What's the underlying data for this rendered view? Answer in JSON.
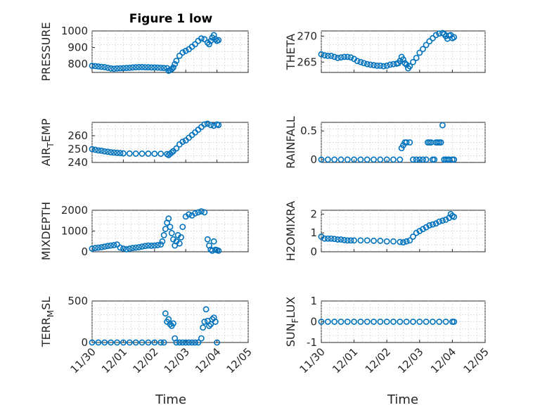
{
  "figure": {
    "title": "Figure 1 low"
  },
  "chart_data": [
    {
      "type": "scatter",
      "ylabel": "PRESSURE",
      "ylabel_main": "PRESSURE",
      "ylim": [
        750,
        1000
      ],
      "yticks": [
        800,
        900,
        1000
      ],
      "xlim": [
        0,
        5
      ],
      "xticks": [
        "11/30",
        "12/01",
        "12/02",
        "12/03",
        "12/04",
        "12/05"
      ],
      "x": [
        0.0,
        0.1,
        0.2,
        0.3,
        0.4,
        0.5,
        0.6,
        0.7,
        0.8,
        0.9,
        1.0,
        1.1,
        1.2,
        1.3,
        1.4,
        1.5,
        1.6,
        1.7,
        1.8,
        1.9,
        2.0,
        2.1,
        2.2,
        2.3,
        2.4,
        2.45,
        2.5,
        2.55,
        2.6,
        2.65,
        2.7,
        2.8,
        2.9,
        3.0,
        3.1,
        3.2,
        3.3,
        3.4,
        3.5,
        3.6,
        3.7,
        3.75,
        3.8,
        3.85,
        3.9,
        3.95,
        4.0,
        4.05
      ],
      "y": [
        790,
        788,
        786,
        784,
        782,
        778,
        774,
        772,
        774,
        775,
        776,
        777,
        778,
        780,
        781,
        782,
        782,
        781,
        781,
        780,
        780,
        779,
        778,
        777,
        776,
        760,
        765,
        770,
        780,
        800,
        820,
        850,
        870,
        880,
        890,
        905,
        920,
        940,
        955,
        950,
        930,
        920,
        940,
        960,
        975,
        950,
        940,
        945
      ]
    },
    {
      "type": "scatter",
      "ylabel": "THETA",
      "ylabel_main": "THETA",
      "ylim": [
        263,
        271
      ],
      "yticks": [
        265,
        270
      ],
      "xlim": [
        0,
        5
      ],
      "xticks": [
        "11/30",
        "12/01",
        "12/02",
        "12/03",
        "12/04",
        "12/05"
      ],
      "x": [
        0.0,
        0.1,
        0.2,
        0.3,
        0.4,
        0.5,
        0.6,
        0.7,
        0.8,
        0.9,
        1.0,
        1.1,
        1.2,
        1.3,
        1.4,
        1.5,
        1.6,
        1.7,
        1.8,
        1.9,
        2.0,
        2.1,
        2.2,
        2.3,
        2.35,
        2.4,
        2.45,
        2.5,
        2.55,
        2.6,
        2.65,
        2.7,
        2.8,
        2.9,
        3.0,
        3.1,
        3.2,
        3.3,
        3.4,
        3.5,
        3.6,
        3.7,
        3.75,
        3.8,
        3.85,
        3.9,
        3.95,
        4.0,
        4.05
      ],
      "y": [
        266.5,
        266.3,
        266.2,
        266.2,
        266.0,
        265.8,
        265.9,
        266.0,
        266.0,
        265.9,
        265.6,
        265.2,
        265.0,
        264.8,
        264.6,
        264.5,
        264.4,
        264.3,
        264.3,
        264.2,
        264.3,
        264.5,
        264.6,
        264.7,
        264.8,
        265.2,
        266.0,
        265.5,
        264.8,
        264.5,
        263.8,
        264.2,
        265.0,
        265.8,
        266.8,
        267.5,
        268.3,
        269.0,
        269.6,
        270.2,
        270.5,
        270.6,
        270.4,
        270.0,
        269.5,
        270.1,
        270.2,
        269.6,
        269.8
      ]
    },
    {
      "type": "scatter",
      "ylabel": "AIR_TEMP",
      "ylabel_main": "AIR",
      "ylabel_sub": "T",
      "ylabel_rest": "EMP",
      "ylim": [
        240,
        270
      ],
      "yticks": [
        240,
        250,
        260
      ],
      "xlim": [
        0,
        5
      ],
      "xticks": [
        "11/30",
        "12/01",
        "12/02",
        "12/03",
        "12/04",
        "12/05"
      ],
      "x": [
        0.0,
        0.1,
        0.2,
        0.3,
        0.4,
        0.5,
        0.6,
        0.7,
        0.8,
        0.9,
        1.0,
        1.2,
        1.4,
        1.6,
        1.8,
        2.0,
        2.2,
        2.4,
        2.45,
        2.5,
        2.55,
        2.6,
        2.7,
        2.8,
        2.9,
        3.0,
        3.1,
        3.2,
        3.3,
        3.4,
        3.5,
        3.6,
        3.7,
        3.8,
        3.9,
        4.0,
        4.05
      ],
      "y": [
        250,
        249.5,
        249,
        248.8,
        248.3,
        248,
        247.6,
        247.4,
        247.2,
        247,
        246.8,
        246.7,
        246.6,
        246.6,
        246.6,
        246.5,
        246.5,
        246.3,
        245.5,
        246.5,
        247.5,
        248.5,
        250.5,
        253.5,
        255.5,
        256.5,
        258.5,
        260.5,
        262.5,
        264.5,
        266.5,
        268.5,
        269,
        268,
        267.5,
        268.5,
        268
      ]
    },
    {
      "type": "scatter",
      "ylabel": "RAINFALL",
      "ylabel_main": "RAINFALL",
      "ylim": [
        -0.05,
        0.65
      ],
      "yticks": [
        0,
        0.5
      ],
      "xlim": [
        0,
        5
      ],
      "xticks": [
        "11/30",
        "12/01",
        "12/02",
        "12/03",
        "12/04",
        "12/05"
      ],
      "x": [
        0.0,
        0.2,
        0.4,
        0.6,
        0.8,
        1.0,
        1.2,
        1.4,
        1.6,
        1.8,
        2.0,
        2.2,
        2.4,
        2.45,
        2.5,
        2.55,
        2.6,
        2.7,
        2.8,
        2.9,
        3.0,
        3.1,
        3.2,
        3.25,
        3.3,
        3.35,
        3.4,
        3.45,
        3.5,
        3.55,
        3.6,
        3.65,
        3.7,
        3.75,
        3.8,
        3.85,
        3.9,
        4.0,
        4.05
      ],
      "y": [
        0,
        0,
        0,
        0,
        0,
        0,
        0,
        0,
        0,
        0,
        0,
        0,
        0,
        0.2,
        0.25,
        0.3,
        0.3,
        0.3,
        0,
        0,
        0,
        0,
        0,
        0.3,
        0.3,
        0.3,
        0,
        0,
        0.3,
        0.3,
        0.3,
        0.3,
        0.6,
        0,
        0,
        0,
        0,
        0,
        0
      ]
    },
    {
      "type": "scatter",
      "ylabel": "MIXDEPTH",
      "ylabel_main": "MIXDEPTH",
      "ylim": [
        0,
        2000
      ],
      "yticks": [
        0,
        1000,
        2000
      ],
      "xlim": [
        0,
        5
      ],
      "xticks": [
        "11/30",
        "12/01",
        "12/02",
        "12/03",
        "12/04",
        "12/05"
      ],
      "x": [
        0.0,
        0.1,
        0.2,
        0.3,
        0.4,
        0.5,
        0.6,
        0.7,
        0.8,
        0.9,
        1.0,
        1.1,
        1.2,
        1.3,
        1.4,
        1.5,
        1.6,
        1.7,
        1.8,
        1.9,
        2.0,
        2.1,
        2.2,
        2.25,
        2.3,
        2.35,
        2.4,
        2.45,
        2.5,
        2.55,
        2.6,
        2.65,
        2.7,
        2.75,
        2.8,
        2.85,
        2.9,
        3.0,
        3.1,
        3.2,
        3.3,
        3.4,
        3.5,
        3.6,
        3.7,
        3.75,
        3.8,
        3.85,
        3.9,
        3.95,
        4.0,
        4.05
      ],
      "y": [
        150,
        180,
        200,
        220,
        250,
        280,
        300,
        320,
        350,
        200,
        150,
        120,
        150,
        180,
        200,
        220,
        250,
        280,
        300,
        290,
        300,
        320,
        350,
        500,
        800,
        1100,
        1400,
        1600,
        1200,
        900,
        600,
        300,
        500,
        800,
        400,
        700,
        1200,
        1700,
        1800,
        1750,
        1850,
        1900,
        1950,
        1900,
        600,
        300,
        100,
        50,
        500,
        100,
        80,
        50
      ]
    },
    {
      "type": "scatter",
      "ylabel": "H2OMIXRA",
      "ylabel_main": "H2OMIXRA",
      "ylim": [
        0,
        2.2
      ],
      "yticks": [
        0,
        1,
        2
      ],
      "xlim": [
        0,
        5
      ],
      "xticks": [
        "11/30",
        "12/01",
        "12/02",
        "12/03",
        "12/04",
        "12/05"
      ],
      "x": [
        0.0,
        0.1,
        0.2,
        0.3,
        0.4,
        0.5,
        0.6,
        0.7,
        0.8,
        0.9,
        1.0,
        1.2,
        1.4,
        1.6,
        1.8,
        2.0,
        2.2,
        2.4,
        2.5,
        2.6,
        2.7,
        2.8,
        2.9,
        3.0,
        3.1,
        3.2,
        3.3,
        3.4,
        3.5,
        3.6,
        3.7,
        3.8,
        3.9,
        3.95,
        4.0,
        4.05
      ],
      "y": [
        0.8,
        0.7,
        0.7,
        0.7,
        0.68,
        0.65,
        0.65,
        0.62,
        0.6,
        0.6,
        0.6,
        0.6,
        0.6,
        0.58,
        0.58,
        0.55,
        0.55,
        0.52,
        0.5,
        0.55,
        0.6,
        0.8,
        1.0,
        1.1,
        1.2,
        1.3,
        1.4,
        1.45,
        1.5,
        1.6,
        1.65,
        1.7,
        1.8,
        2.0,
        1.9,
        1.85
      ]
    },
    {
      "type": "scatter",
      "ylabel": "TERR_MSL",
      "ylabel_main": "TERR",
      "ylabel_sub": "M",
      "ylabel_rest": "SL",
      "ylim": [
        0,
        500
      ],
      "yticks": [
        0,
        500
      ],
      "xlim": [
        0,
        5
      ],
      "xticks": [
        "11/30",
        "12/01",
        "12/02",
        "12/03",
        "12/04",
        "12/05"
      ],
      "x": [
        0.0,
        0.2,
        0.4,
        0.6,
        0.8,
        1.0,
        1.2,
        1.4,
        1.6,
        1.8,
        2.0,
        2.2,
        2.3,
        2.35,
        2.4,
        2.45,
        2.5,
        2.55,
        2.6,
        2.65,
        2.7,
        2.8,
        2.9,
        3.0,
        3.1,
        3.2,
        3.3,
        3.4,
        3.5,
        3.55,
        3.6,
        3.65,
        3.7,
        3.75,
        3.8,
        3.85,
        3.9,
        3.95,
        4.0
      ],
      "y": [
        0,
        0,
        0,
        0,
        0,
        0,
        0,
        0,
        0,
        0,
        0,
        0,
        0,
        350,
        250,
        280,
        220,
        200,
        230,
        50,
        0,
        0,
        0,
        0,
        0,
        0,
        0,
        0,
        50,
        180,
        250,
        400,
        260,
        200,
        220,
        280,
        300,
        250,
        0
      ]
    },
    {
      "type": "scatter",
      "ylabel": "SUN_FLUX",
      "ylabel_main": "SUN",
      "ylabel_sub": "F",
      "ylabel_rest": "LUX",
      "ylim": [
        -1,
        1
      ],
      "yticks": [
        -1,
        0,
        1
      ],
      "xlim": [
        0,
        5
      ],
      "xticks": [
        "11/30",
        "12/01",
        "12/02",
        "12/03",
        "12/04",
        "12/05"
      ],
      "x": [
        0.0,
        0.2,
        0.4,
        0.6,
        0.8,
        1.0,
        1.2,
        1.4,
        1.6,
        1.8,
        2.0,
        2.2,
        2.4,
        2.6,
        2.8,
        3.0,
        3.2,
        3.4,
        3.6,
        3.8,
        4.0,
        4.05
      ],
      "y": [
        0,
        0,
        0,
        0,
        0,
        0,
        0,
        0,
        0,
        0,
        0,
        0,
        0,
        0,
        0,
        0,
        0,
        0,
        0,
        0,
        0,
        0
      ]
    }
  ],
  "axes": {
    "xlabel": "Time"
  }
}
